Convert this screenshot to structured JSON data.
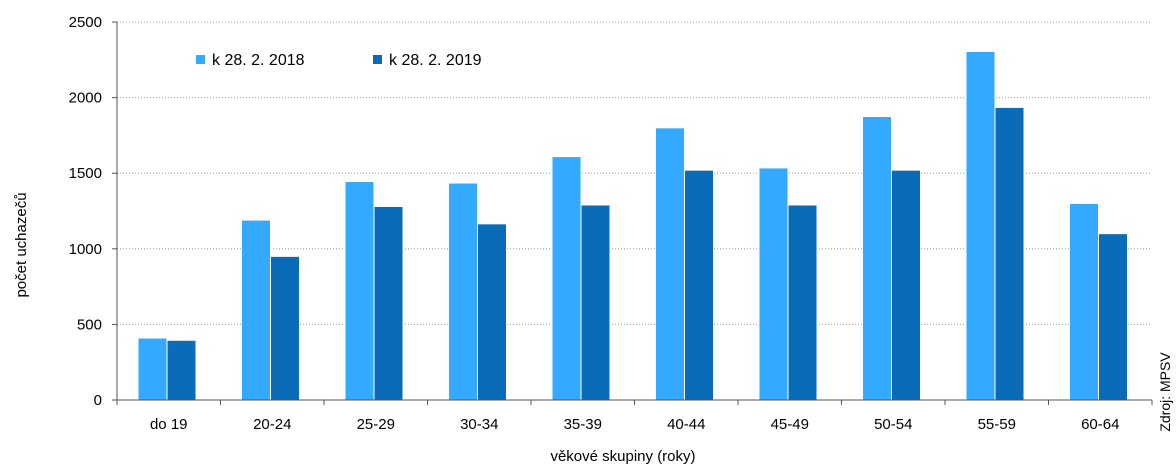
{
  "chart_data": {
    "type": "bar",
    "categories": [
      "do 19",
      "20-24",
      "25-29",
      "30-34",
      "35-39",
      "40-44",
      "45-49",
      "50-54",
      "55-59",
      "60-64"
    ],
    "series": [
      {
        "name": "k 28. 2. 2018",
        "color": "#33aaff",
        "values": [
          410,
          1190,
          1445,
          1435,
          1610,
          1800,
          1535,
          1875,
          2305,
          1300
        ]
      },
      {
        "name": "k 28. 2. 2019",
        "color": "#0a6cb8",
        "values": [
          395,
          950,
          1280,
          1165,
          1290,
          1520,
          1290,
          1520,
          1935,
          1100
        ]
      }
    ],
    "title": "",
    "xlabel": "věkové skupiny (roky)",
    "ylabel": "počet uchazečů",
    "ylim": [
      0,
      2500
    ],
    "yticks": [
      "0",
      "500",
      "1000",
      "1500",
      "2000",
      "2500"
    ],
    "grid": true,
    "legend_position": "top-left"
  },
  "source_note": "Zdroj: MPSV"
}
